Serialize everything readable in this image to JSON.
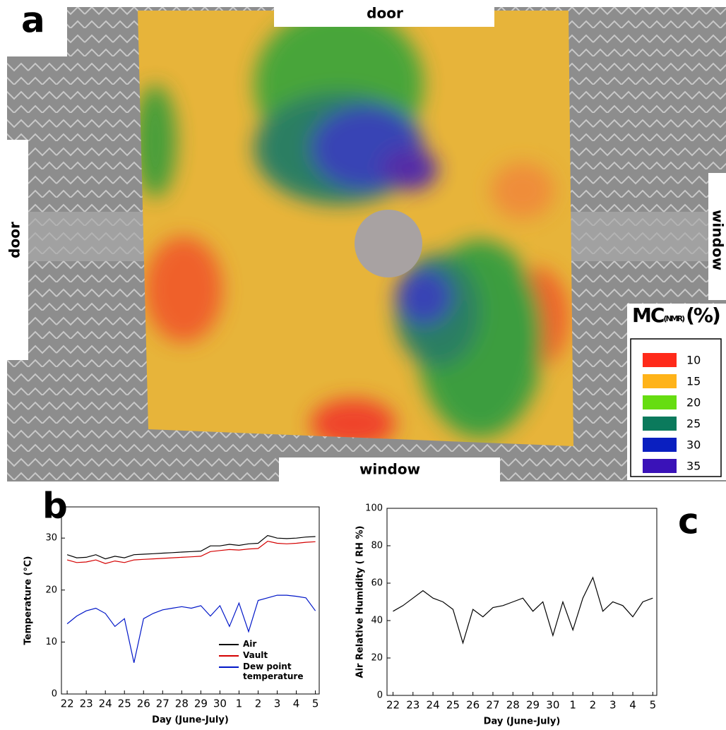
{
  "map": {
    "panel": "a",
    "labels": {
      "top": "door",
      "left": "door",
      "right": "window",
      "bottom": "window"
    },
    "legend": {
      "title": "MC",
      "title_sub": "(NMR)",
      "title_unit": "(%)",
      "entries": [
        {
          "value": 10,
          "color": "#ff2a1a"
        },
        {
          "value": 15,
          "color": "#ffb319"
        },
        {
          "value": 20,
          "color": "#66dd11"
        },
        {
          "value": 25,
          "color": "#0b7a5c"
        },
        {
          "value": 30,
          "color": "#0a1fc0"
        },
        {
          "value": 35,
          "color": "#3a12b8"
        }
      ]
    }
  },
  "chart_data": [
    {
      "type": "line",
      "panel": "b",
      "xlabel": "Day (June-July)",
      "ylabel": "Temperature (°C)",
      "x": [
        22,
        22.5,
        23,
        23.5,
        24,
        24.5,
        25,
        25.5,
        26,
        26.5,
        27,
        27.5,
        28,
        28.5,
        29,
        29.5,
        30,
        30.5,
        31,
        31.5,
        32,
        32.5,
        33,
        33.5,
        34,
        34.5,
        35
      ],
      "series": [
        {
          "name": "Air",
          "color": "#000000",
          "values": [
            26.8,
            26.2,
            26.3,
            26.8,
            26.0,
            26.5,
            26.2,
            26.8,
            26.9,
            27.0,
            27.1,
            27.2,
            27.3,
            27.4,
            27.5,
            28.5,
            28.5,
            28.8,
            28.6,
            28.9,
            29.0,
            30.5,
            30.0,
            29.9,
            30.0,
            30.2,
            30.3
          ]
        },
        {
          "name": "Vault",
          "color": "#d40000",
          "values": [
            25.8,
            25.3,
            25.4,
            25.8,
            25.1,
            25.6,
            25.3,
            25.8,
            25.9,
            26.0,
            26.1,
            26.2,
            26.3,
            26.4,
            26.5,
            27.4,
            27.6,
            27.8,
            27.7,
            27.9,
            28.0,
            29.4,
            29.0,
            28.9,
            29.0,
            29.2,
            29.3
          ]
        },
        {
          "name": "Dew point temperature",
          "color": "#0016c8",
          "values": [
            13.5,
            15.0,
            16.0,
            16.5,
            15.5,
            13.0,
            14.5,
            6.0,
            14.5,
            15.5,
            16.2,
            16.5,
            16.8,
            16.5,
            17.0,
            15.0,
            17.0,
            13.0,
            17.5,
            12.0,
            18.0,
            18.5,
            19.0,
            19.0,
            18.8,
            18.5,
            16.0
          ]
        }
      ],
      "xlim": [
        21.7,
        35.2
      ],
      "ylim": [
        0,
        36
      ],
      "xticks": [
        22,
        23,
        24,
        25,
        26,
        27,
        28,
        29,
        30,
        {
          "value": 31,
          "label": "1"
        },
        {
          "value": 32,
          "label": "2"
        },
        {
          "value": 33,
          "label": "3"
        },
        {
          "value": 34,
          "label": "4"
        },
        {
          "value": 35,
          "label": "5"
        }
      ],
      "yticks": [
        0,
        10,
        20,
        30
      ]
    },
    {
      "type": "line",
      "panel": "c",
      "xlabel": "Day (June-July)",
      "ylabel": "Air Relative Humidity ( RH %)",
      "x": [
        22,
        22.5,
        23,
        23.5,
        24,
        24.5,
        25,
        25.5,
        26,
        26.5,
        27,
        27.5,
        28,
        28.5,
        29,
        29.5,
        30,
        30.5,
        31,
        31.5,
        32,
        32.5,
        33,
        33.5,
        34,
        34.5,
        35
      ],
      "series": [
        {
          "name": null,
          "color": "#000000",
          "values": [
            45,
            48,
            52,
            56,
            52,
            50,
            46,
            28,
            46,
            42,
            47,
            48,
            50,
            52,
            45,
            50,
            32,
            50,
            35,
            52,
            63,
            45,
            50,
            48,
            42,
            50,
            52
          ]
        }
      ],
      "xlim": [
        21.7,
        35.2
      ],
      "ylim": [
        0,
        100
      ],
      "xticks": [
        22,
        23,
        24,
        25,
        26,
        27,
        28,
        29,
        30,
        {
          "value": 31,
          "label": "1"
        },
        {
          "value": 32,
          "label": "2"
        },
        {
          "value": 33,
          "label": "3"
        },
        {
          "value": 34,
          "label": "4"
        },
        {
          "value": 35,
          "label": "5"
        }
      ],
      "yticks": [
        0,
        20,
        40,
        60,
        80,
        100
      ]
    }
  ]
}
